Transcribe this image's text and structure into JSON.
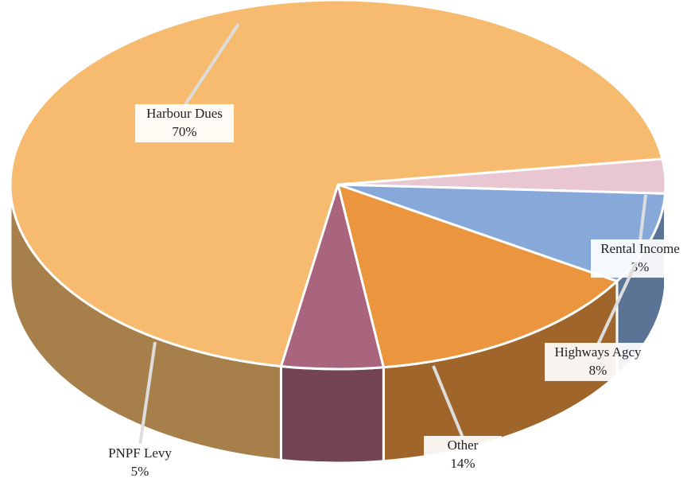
{
  "chart_data": {
    "type": "pie",
    "categories": [
      "Rental Income",
      "Highways Agcy",
      "Other",
      "PNPF Levy",
      "Harbour Dues"
    ],
    "values": [
      3,
      8,
      14,
      5,
      70
    ],
    "value_labels": [
      "3%",
      "8%",
      "14%",
      "5%",
      "70%"
    ],
    "colors": [
      "#e8c6d2",
      "#86a9da",
      "#eb953e",
      "#a9647e",
      "#f6bb6e"
    ]
  }
}
